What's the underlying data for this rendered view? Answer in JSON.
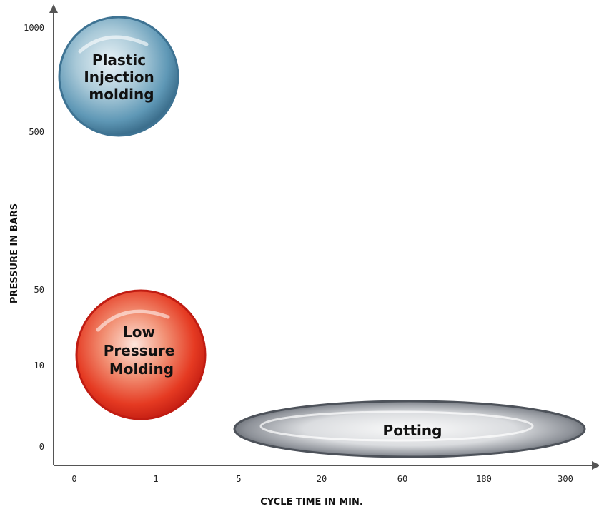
{
  "chart_data": {
    "type": "scatter",
    "title": "",
    "xlabel": "CYCLE TIME IN MIN.",
    "ylabel": "PRESSURE IN BARS",
    "x_ticks": [
      "0",
      "1",
      "5",
      "20",
      "60",
      "180",
      "300"
    ],
    "y_ticks": [
      "0",
      "10",
      "50",
      "500",
      "1000"
    ],
    "grid": false,
    "legend": "none",
    "regions": [
      {
        "label": [
          "Plastic",
          "Injection",
          "molding"
        ],
        "x_range": [
          "0",
          "1"
        ],
        "y_range": [
          "500",
          "1000"
        ],
        "color": "#4f8aa8"
      },
      {
        "label": [
          "Low",
          "Pressure",
          "Molding"
        ],
        "x_range": [
          "0",
          "1"
        ],
        "y_range": [
          "0",
          "50"
        ],
        "color": "#e53a22"
      },
      {
        "label": [
          "Potting"
        ],
        "x_range": [
          "5",
          "300"
        ],
        "y_range": [
          "0",
          "0"
        ],
        "color": "#6b7079"
      }
    ]
  }
}
